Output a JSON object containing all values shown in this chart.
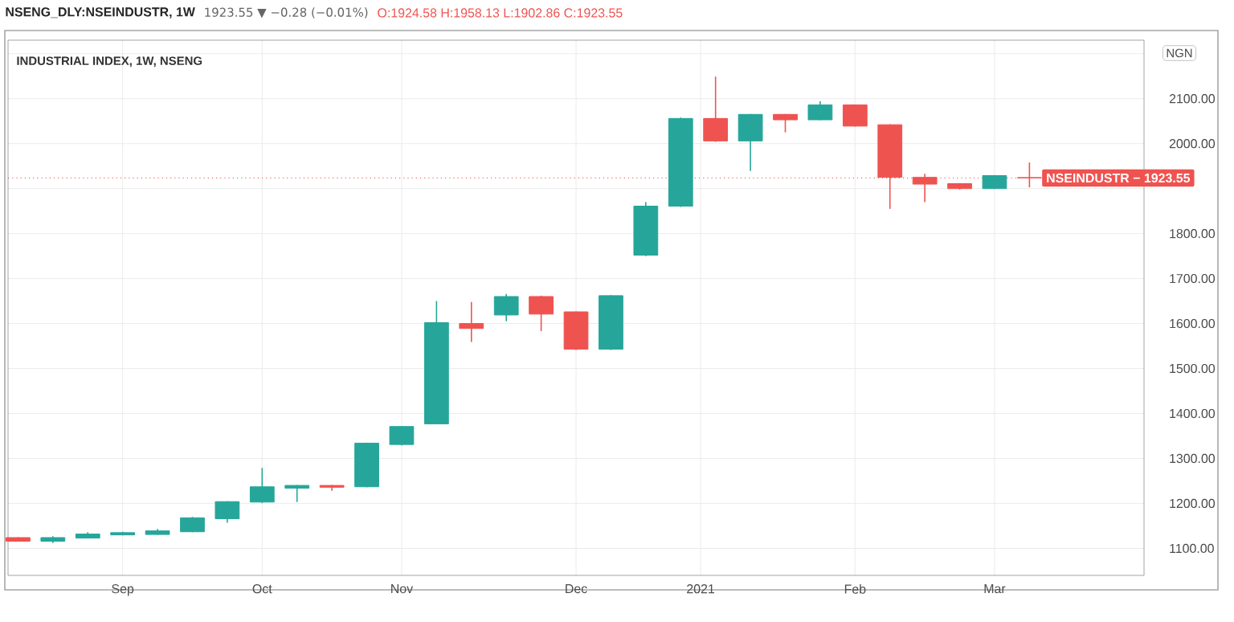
{
  "chart_data": {
    "type": "candlestick",
    "title": "NSENG_DLY:NSEINDUSTR, 1W",
    "subtitle": "INDUSTRIAL INDEX, 1W, NSENG",
    "annotations": [
      "1923.55 ▼ −0.28 (−0.01%)",
      "O:1924.58 H:1958.13 L:1902.86 C:1923.55",
      "NGN"
    ],
    "x": [
      "2020-08-17",
      "2020-08-24",
      "2020-08-31",
      "2020-09-07",
      "2020-09-14",
      "2020-09-21",
      "2020-09-28",
      "2020-10-05",
      "2020-10-12",
      "2020-10-19",
      "2020-10-26",
      "2020-11-02",
      "2020-11-09",
      "2020-11-16",
      "2020-11-23",
      "2020-11-30",
      "2020-12-07",
      "2020-12-14",
      "2020-12-21",
      "2020-12-28",
      "2021-01-04",
      "2021-01-11",
      "2021-01-18",
      "2021-01-25",
      "2021-02-01",
      "2021-02-08",
      "2021-02-15",
      "2021-02-22",
      "2021-03-01",
      "2021-03-08"
    ],
    "ohlc": [
      [
        1124,
        1125,
        1115,
        1116
      ],
      [
        1116,
        1127,
        1112,
        1124
      ],
      [
        1123,
        1136,
        1122,
        1132
      ],
      [
        1130,
        1137,
        1129,
        1135
      ],
      [
        1131,
        1143,
        1130,
        1139
      ],
      [
        1137,
        1170,
        1136,
        1168
      ],
      [
        1166,
        1205,
        1157,
        1204
      ],
      [
        1203,
        1279,
        1201,
        1237
      ],
      [
        1234,
        1241,
        1203,
        1240
      ],
      [
        1240,
        1241,
        1228,
        1236
      ],
      [
        1237,
        1335,
        1236,
        1334
      ],
      [
        1331,
        1372,
        1329,
        1371
      ],
      [
        1377,
        1650,
        1376,
        1602
      ],
      [
        1600,
        1648,
        1559,
        1589
      ],
      [
        1619,
        1666,
        1605,
        1660
      ],
      [
        1660,
        1662,
        1583,
        1621
      ],
      [
        1626,
        1627,
        1541,
        1543
      ],
      [
        1543,
        1663,
        1541,
        1662
      ],
      [
        1752,
        1870,
        1750,
        1861
      ],
      [
        1861,
        2058,
        1859,
        2056
      ],
      [
        2056,
        2149,
        2004,
        2006
      ],
      [
        2006,
        2066,
        1939,
        2065
      ],
      [
        2065,
        2066,
        2025,
        2053
      ],
      [
        2053,
        2094,
        2052,
        2086
      ],
      [
        2086,
        2087,
        2038,
        2039
      ],
      [
        2042,
        2043,
        1855,
        1925
      ],
      [
        1925,
        1933,
        1870,
        1910
      ],
      [
        1911,
        1912,
        1898,
        1900
      ],
      [
        1900,
        1930,
        1899,
        1929
      ],
      [
        1924.58,
        1958.13,
        1902.86,
        1923.55
      ]
    ],
    "colors": [
      "#ef5350",
      "#26a69a",
      "#26a69a",
      "#26a69a",
      "#26a69a",
      "#26a69a",
      "#26a69a",
      "#26a69a",
      "#26a69a",
      "#ef5350",
      "#26a69a",
      "#26a69a",
      "#26a69a",
      "#ef5350",
      "#26a69a",
      "#ef5350",
      "#ef5350",
      "#26a69a",
      "#26a69a",
      "#26a69a",
      "#ef5350",
      "#26a69a",
      "#ef5350",
      "#26a69a",
      "#ef5350",
      "#ef5350",
      "#ef5350",
      "#ef5350",
      "#26a69a",
      "#ef5350"
    ],
    "xlim": [
      "2020-08-15",
      "2021-03-31"
    ],
    "xticks": [
      {
        "value": "2020-09-07",
        "label": "Sep"
      },
      {
        "value": "2020-10-05",
        "label": "Oct"
      },
      {
        "value": "2020-11-02",
        "label": "Nov"
      },
      {
        "value": "2020-12-07",
        "label": "Dec"
      },
      {
        "value": "2021-01-01",
        "label": "2021"
      },
      {
        "value": "2021-02-01",
        "label": "Feb"
      },
      {
        "value": "2021-03-01",
        "label": "Mar"
      }
    ],
    "ylim": [
      1040,
      2230
    ],
    "yticks": [
      {
        "value": 1100,
        "label": "1100.00"
      },
      {
        "value": 1200,
        "label": "1200.00"
      },
      {
        "value": 1300,
        "label": "1300.00"
      },
      {
        "value": 1400,
        "label": "1400.00"
      },
      {
        "value": 1500,
        "label": "1500.00"
      },
      {
        "value": 1600,
        "label": "1600.00"
      },
      {
        "value": 1700,
        "label": "1700.00"
      },
      {
        "value": 1800,
        "label": "1800.00"
      },
      {
        "value": 1900,
        "label": null
      },
      {
        "value": 2000,
        "label": "2000.00"
      },
      {
        "value": 2100,
        "label": "2100.00"
      },
      {
        "value": 2200,
        "label": null
      }
    ],
    "ref_lines": [
      {
        "axis": "y",
        "value": 1923.55,
        "label": "NSEINDUSTR − 1923.55",
        "color": "#ef5350",
        "line_style": "dotted"
      }
    ],
    "grid": true
  }
}
